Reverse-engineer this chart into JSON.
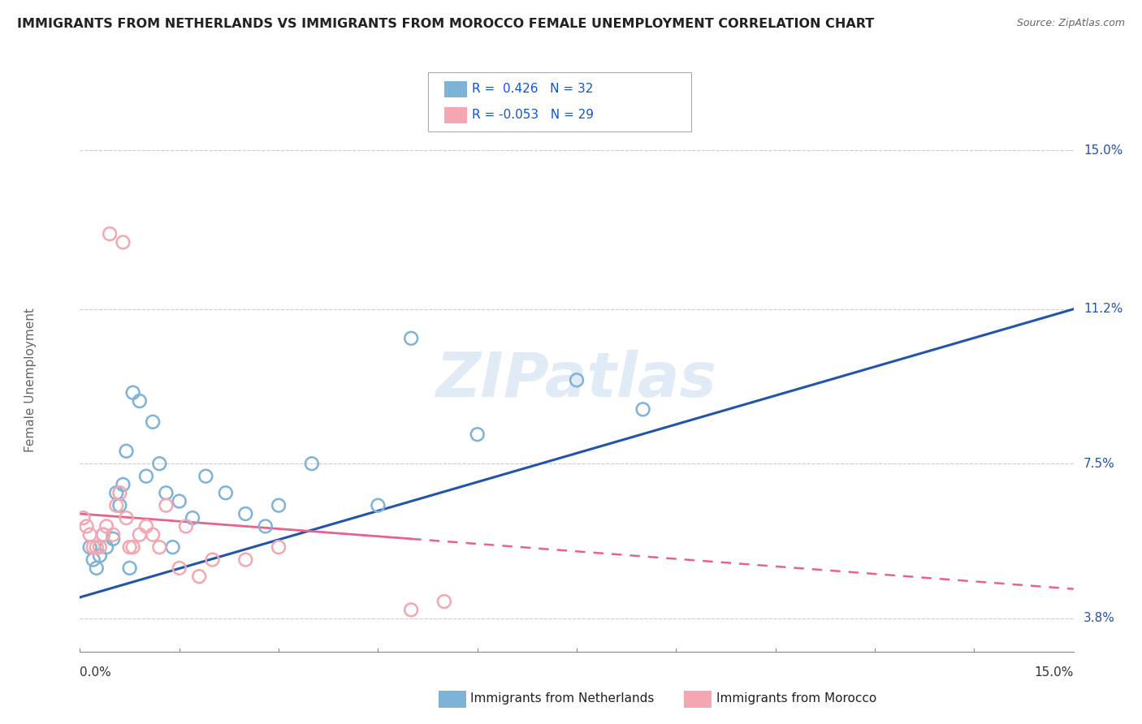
{
  "title": "IMMIGRANTS FROM NETHERLANDS VS IMMIGRANTS FROM MOROCCO FEMALE UNEMPLOYMENT CORRELATION CHART",
  "source": "Source: ZipAtlas.com",
  "ylabel": "Female Unemployment",
  "yticks": [
    3.8,
    7.5,
    11.2,
    15.0
  ],
  "ytick_labels": [
    "3.8%",
    "7.5%",
    "11.2%",
    "15.0%"
  ],
  "xmin": 0.0,
  "xmax": 15.0,
  "ymin": 3.0,
  "ymax": 16.0,
  "legend1_R": "0.426",
  "legend1_N": "32",
  "legend2_R": "-0.053",
  "legend2_N": "29",
  "blue_color": "#7EB3D8",
  "pink_color": "#F4A7B0",
  "blue_line_color": "#2255AA",
  "pink_line_color": "#E8638A",
  "watermark": "ZIPatlas",
  "netherlands_x": [
    0.15,
    0.2,
    0.25,
    0.3,
    0.35,
    0.4,
    0.5,
    0.55,
    0.6,
    0.65,
    0.7,
    0.8,
    0.9,
    1.0,
    1.1,
    1.2,
    1.3,
    1.5,
    1.7,
    1.9,
    2.2,
    2.5,
    3.0,
    3.5,
    5.0,
    6.0,
    7.5,
    8.5,
    2.8,
    4.5,
    1.4,
    0.75
  ],
  "netherlands_y": [
    5.5,
    5.2,
    5.0,
    5.3,
    5.8,
    5.5,
    5.7,
    6.8,
    6.5,
    7.0,
    7.8,
    9.2,
    9.0,
    7.2,
    8.5,
    7.5,
    6.8,
    6.6,
    6.2,
    7.2,
    6.8,
    6.3,
    6.5,
    7.5,
    10.5,
    8.2,
    9.5,
    8.8,
    6.0,
    6.5,
    5.5,
    5.0
  ],
  "morocco_x": [
    0.05,
    0.1,
    0.15,
    0.2,
    0.25,
    0.3,
    0.35,
    0.4,
    0.5,
    0.55,
    0.6,
    0.7,
    0.8,
    0.9,
    1.0,
    1.1,
    1.2,
    1.5,
    1.8,
    2.5,
    3.0,
    5.0,
    5.5,
    0.45,
    0.65,
    0.75,
    1.3,
    1.6,
    2.0
  ],
  "morocco_y": [
    6.2,
    6.0,
    5.8,
    5.5,
    5.5,
    5.5,
    5.8,
    6.0,
    5.8,
    6.5,
    6.8,
    6.2,
    5.5,
    5.8,
    6.0,
    5.8,
    5.5,
    5.0,
    4.8,
    5.2,
    5.5,
    4.0,
    4.2,
    13.0,
    12.8,
    5.5,
    6.5,
    6.0,
    5.2
  ],
  "blue_line_x0": 0.0,
  "blue_line_y0": 4.3,
  "blue_line_x1": 15.0,
  "blue_line_y1": 11.2,
  "pink_line_x0": 0.0,
  "pink_line_y0": 6.3,
  "pink_line_x1": 15.0,
  "pink_line_y1": 4.5,
  "pink_solid_end": 5.0,
  "grid_color": "#CCCCCC",
  "background_color": "#FFFFFF"
}
